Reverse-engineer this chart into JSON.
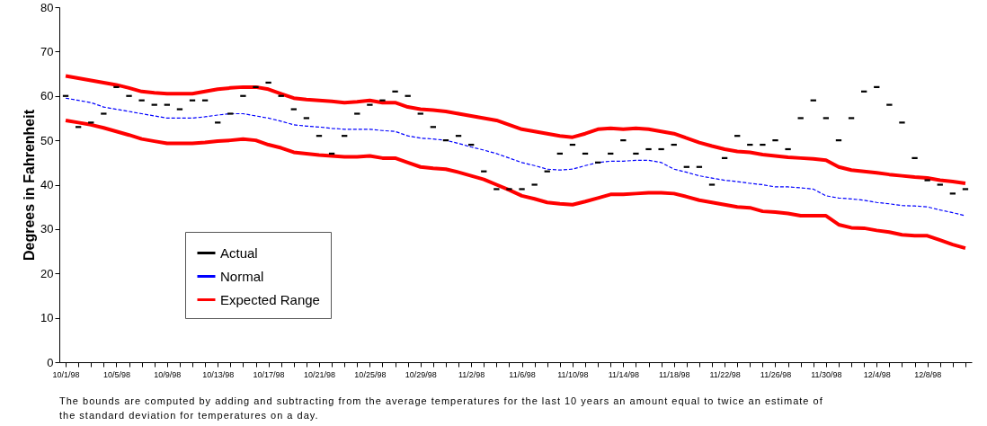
{
  "chart_data": {
    "type": "line",
    "ylabel": "Degrees in Fahrenheit",
    "ylim": [
      0,
      80
    ],
    "yticks": [
      0,
      10,
      20,
      30,
      40,
      50,
      60,
      70,
      80
    ],
    "grid": false,
    "legend": "bottom left",
    "categories": [
      "10/1/98",
      null,
      null,
      null,
      "10/5/98",
      null,
      null,
      null,
      "10/9/98",
      null,
      null,
      null,
      "10/13/98",
      null,
      null,
      null,
      "10/17/98",
      null,
      null,
      null,
      "10/21/98",
      null,
      null,
      null,
      "10/25/98",
      null,
      null,
      null,
      "10/29/98",
      null,
      null,
      null,
      "11/2/98",
      null,
      null,
      null,
      "11/6/98",
      null,
      null,
      null,
      "11/10/98",
      null,
      null,
      null,
      "11/14/98",
      null,
      null,
      null,
      "11/18/98",
      null,
      null,
      null,
      "11/22/98",
      null,
      null,
      null,
      "11/26/98",
      null,
      null,
      null,
      "11/30/98",
      null,
      null,
      null,
      "12/4/98",
      null,
      null,
      null,
      "12/8/98",
      null,
      null,
      null
    ],
    "series": [
      {
        "name": "Actual",
        "type": "scatter",
        "color": "#000000",
        "values": [
          60,
          53,
          54,
          56,
          62,
          60,
          59,
          58,
          58,
          57,
          59,
          59,
          54,
          56,
          60,
          62,
          63,
          60,
          57,
          55,
          51,
          47,
          51,
          56,
          58,
          59,
          61,
          60,
          56,
          53,
          50,
          51,
          49,
          43,
          39,
          39,
          39,
          40,
          43,
          47,
          49,
          47,
          45,
          47,
          50,
          47,
          48,
          48,
          49,
          44,
          44,
          40,
          46,
          51,
          49,
          49,
          50,
          48,
          55,
          59,
          55,
          50,
          55,
          61,
          62,
          58,
          54,
          46,
          41,
          40,
          38,
          39
        ]
      },
      {
        "name": "Normal",
        "color": "#0000ff",
        "line_style": "dashed",
        "values": [
          59.5,
          59,
          58.5,
          57.5,
          57,
          56.5,
          56,
          55.5,
          55,
          55,
          55,
          55.3,
          55.7,
          56,
          56,
          55.5,
          55,
          54.3,
          53.5,
          53.2,
          53,
          52.7,
          52.5,
          52.5,
          52.5,
          52.2,
          52,
          51,
          50.5,
          50.3,
          50,
          49.3,
          48.5,
          47.8,
          47,
          46,
          45,
          44.3,
          43.5,
          43.3,
          43.5,
          44.3,
          45,
          45.3,
          45.3,
          45.5,
          45.5,
          45,
          43.5,
          42.8,
          42,
          41.5,
          41,
          40.7,
          40.3,
          40,
          39.5,
          39.5,
          39.3,
          39,
          37.5,
          37,
          36.8,
          36.5,
          36,
          35.7,
          35.3,
          35.2,
          35,
          34.3,
          33.7,
          33
        ]
      },
      {
        "name": "Expected Range",
        "color": "#ff0000",
        "line_style": "solid",
        "values": [
          64.5,
          64,
          63.5,
          63,
          62.5,
          61.8,
          61,
          60.7,
          60.5,
          60.5,
          60.5,
          61,
          61.5,
          61.8,
          62,
          62,
          61.5,
          60.5,
          59.5,
          59.2,
          59,
          58.8,
          58.5,
          58.7,
          59,
          58.5,
          58.5,
          57.5,
          57,
          56.8,
          56.5,
          56,
          55.5,
          55,
          54.5,
          53.5,
          52.5,
          52,
          51.5,
          51,
          50.7,
          51.5,
          52.5,
          52.7,
          52.5,
          52.7,
          52.5,
          52,
          51.5,
          50.5,
          49.5,
          48.7,
          48,
          47.5,
          47.3,
          46.8,
          46.5,
          46.2,
          46,
          45.8,
          45.5,
          44,
          43.3,
          43,
          42.7,
          42.3,
          42,
          41.7,
          41.5,
          41,
          40.7,
          40.3
        ]
      },
      {
        "color": "#ff0000",
        "line_style": "solid",
        "values": [
          54.5,
          54,
          53.5,
          52.8,
          52,
          51.2,
          50.3,
          49.8,
          49.3,
          49.3,
          49.3,
          49.5,
          49.8,
          50,
          50.3,
          50,
          49,
          48.3,
          47.3,
          47,
          46.7,
          46.5,
          46.3,
          46.3,
          46.5,
          46,
          46,
          45,
          44,
          43.7,
          43.5,
          42.8,
          42,
          41.2,
          40,
          38.8,
          37.5,
          36.8,
          36,
          35.7,
          35.5,
          36.2,
          37,
          37.8,
          37.8,
          38,
          38.2,
          38.2,
          38,
          37.3,
          36.5,
          36,
          35.5,
          35,
          34.8,
          34,
          33.8,
          33.5,
          33,
          33,
          33,
          31,
          30.3,
          30.2,
          29.7,
          29.3,
          28.7,
          28.5,
          28.5,
          27.5,
          26.5,
          25.7
        ]
      }
    ],
    "annotations": [
      "The bounds are computed by adding and subtracting from the average temperatures for the last 10 years an amount equal to twice an estimate of the standard deviation for temperatures on a day."
    ]
  }
}
